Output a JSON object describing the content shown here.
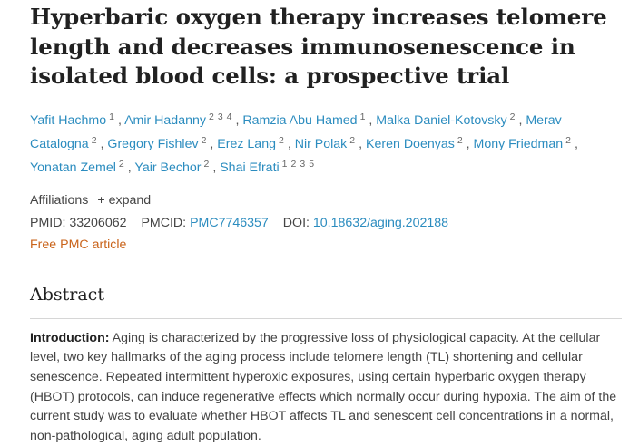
{
  "article": {
    "title": "Hyperbaric oxygen therapy increases telomere length and decreases immunosenescence in isolated blood cells: a prospective trial"
  },
  "authors": [
    {
      "name": "Yafit Hachmo",
      "aff": [
        "1"
      ]
    },
    {
      "name": "Amir Hadanny",
      "aff": [
        "2",
        "3",
        "4"
      ]
    },
    {
      "name": "Ramzia Abu Hamed",
      "aff": [
        "1"
      ]
    },
    {
      "name": "Malka Daniel-Kotovsky",
      "aff": [
        "2"
      ]
    },
    {
      "name": "Merav Catalogna",
      "aff": [
        "2"
      ]
    },
    {
      "name": "Gregory Fishlev",
      "aff": [
        "2"
      ]
    },
    {
      "name": "Erez Lang",
      "aff": [
        "2"
      ]
    },
    {
      "name": "Nir Polak",
      "aff": [
        "2"
      ]
    },
    {
      "name": "Keren Doenyas",
      "aff": [
        "2"
      ]
    },
    {
      "name": "Mony Friedman",
      "aff": [
        "2"
      ]
    },
    {
      "name": "Yonatan Zemel",
      "aff": [
        "2"
      ]
    },
    {
      "name": "Yair Bechor",
      "aff": [
        "2"
      ]
    },
    {
      "name": "Shai Efrati",
      "aff": [
        "1",
        "2",
        "3",
        "5"
      ]
    }
  ],
  "affiliations": {
    "label": "Affiliations",
    "expand_label": "+ expand"
  },
  "identifiers": {
    "pmid_label": "PMID:",
    "pmid": "33206062",
    "pmcid_label": "PMCID:",
    "pmcid": "PMC7746357",
    "doi_label": "DOI:",
    "doi": "10.18632/aging.202188"
  },
  "free_pmc": "Free PMC article",
  "abstract": {
    "heading": "Abstract",
    "intro_label": "Introduction:",
    "intro_text": " Aging is characterized by the progressive loss of physiological capacity. At the cellular level, two key hallmarks of the aging process include telomere length (TL) shortening and cellular senescence. Repeated intermittent hyperoxic exposures, using certain hyperbaric oxygen therapy (HBOT) protocols, can induce regenerative effects which normally occur during hypoxia. The aim of the current study was to evaluate whether HBOT affects TL and senescent cell concentrations in a normal, non-pathological, aging adult population."
  },
  "colors": {
    "link": "#2b8cbf",
    "free_article": "#c9631a",
    "text": "#444444",
    "heading": "#212121"
  }
}
